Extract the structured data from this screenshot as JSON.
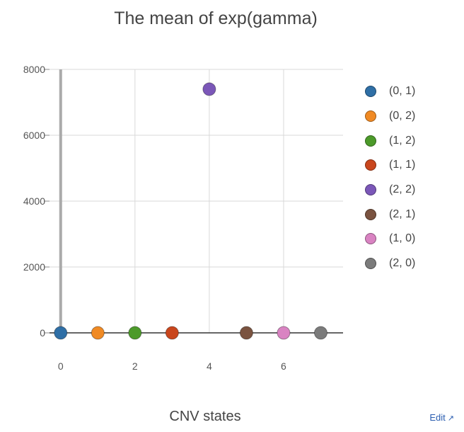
{
  "chart_data": {
    "type": "scatter",
    "title": "The mean of exp(gamma)",
    "xlabel": "CNV states",
    "ylabel": "",
    "xlim": [
      -0.3,
      7.6
    ],
    "ylim": [
      0,
      8000
    ],
    "xticks": [
      0,
      2,
      4,
      6
    ],
    "yticks": [
      0,
      2000,
      4000,
      6000,
      8000
    ],
    "grid": true,
    "legend_position": "right",
    "series": [
      {
        "name": "(0, 1)",
        "color": "#2f6fa6",
        "x": [
          0
        ],
        "y": [
          0
        ]
      },
      {
        "name": "(0, 2)",
        "color": "#f08a24",
        "x": [
          1
        ],
        "y": [
          0
        ]
      },
      {
        "name": "(1, 2)",
        "color": "#4c9a2a",
        "x": [
          2
        ],
        "y": [
          0
        ]
      },
      {
        "name": "(1, 1)",
        "color": "#c9461d",
        "x": [
          3
        ],
        "y": [
          0
        ]
      },
      {
        "name": "(2, 2)",
        "color": "#7b57b8",
        "x": [
          4
        ],
        "y": [
          7400
        ]
      },
      {
        "name": "(2, 1)",
        "color": "#7a5340",
        "x": [
          5
        ],
        "y": [
          0
        ]
      },
      {
        "name": "(1, 0)",
        "color": "#d983c2",
        "x": [
          6
        ],
        "y": [
          0
        ]
      },
      {
        "name": "(2, 0)",
        "color": "#7b7b7b",
        "x": [
          7
        ],
        "y": [
          0
        ]
      }
    ]
  },
  "edit_link": {
    "label": "Edit",
    "icon": "external-link-icon"
  }
}
